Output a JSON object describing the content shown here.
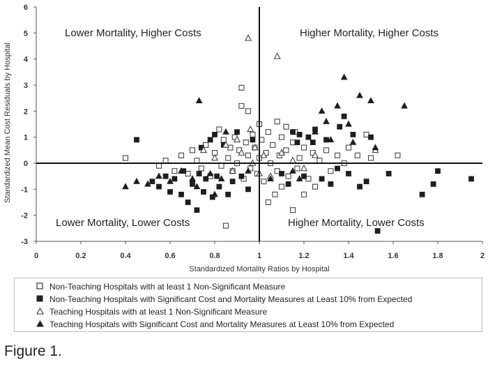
{
  "chart_data": {
    "type": "scatter",
    "title": "",
    "xlabel": "Standardized Mortality Ratios by Hospital",
    "ylabel": "Standardized Mean Cost Residuals by Hospital",
    "xlim": [
      0,
      2
    ],
    "ylim": [
      -3,
      6
    ],
    "x_ticks": [
      "0",
      "0.2",
      "0.4",
      "0.6",
      "0.8",
      "1",
      "1.2",
      "1.4",
      "1.6",
      "1.8",
      "2"
    ],
    "y_ticks": [
      "6",
      "5",
      "4",
      "3",
      "2",
      "1",
      "0",
      "-1",
      "-2",
      "-3"
    ],
    "reference_lines": {
      "x": 1,
      "y": 0
    },
    "quadrant_labels": {
      "top_left": "Lower Mortality, Higher Costs",
      "top_right": "Higher Mortality, Higher Costs",
      "bottom_left": "Lower Mortality, Lower Costs",
      "bottom_right": "Higher Mortality, Lower Costs"
    },
    "legend_placement": "bottom",
    "series": [
      {
        "name": "Non-Teaching Hospitals with at least 1 Non-Significant Measure",
        "marker": "open-square",
        "points": [
          [
            0.4,
            0.2
          ],
          [
            0.55,
            -0.1
          ],
          [
            0.58,
            0.1
          ],
          [
            0.62,
            -0.3
          ],
          [
            0.65,
            0.3
          ],
          [
            0.68,
            -0.4
          ],
          [
            0.7,
            0.5
          ],
          [
            0.72,
            0.1
          ],
          [
            0.74,
            -0.2
          ],
          [
            0.76,
            0.7
          ],
          [
            0.78,
            -0.5
          ],
          [
            0.8,
            0.4
          ],
          [
            0.82,
            1.3
          ],
          [
            0.83,
            -0.1
          ],
          [
            0.84,
            0.9
          ],
          [
            0.85,
            -2.4
          ],
          [
            0.86,
            0.2
          ],
          [
            0.87,
            0.6
          ],
          [
            0.88,
            -0.3
          ],
          [
            0.89,
            1.0
          ],
          [
            0.9,
            0.0
          ],
          [
            0.91,
            0.5
          ],
          [
            0.92,
            2.9
          ],
          [
            0.92,
            2.2
          ],
          [
            0.93,
            -0.6
          ],
          [
            0.94,
            0.8
          ],
          [
            0.95,
            2.0
          ],
          [
            0.95,
            0.3
          ],
          [
            0.96,
            -0.2
          ],
          [
            0.97,
            1.1
          ],
          [
            0.98,
            0.6
          ],
          [
            0.99,
            -0.4
          ],
          [
            1.0,
            1.5
          ],
          [
            1.0,
            0.2
          ],
          [
            1.01,
            0.9
          ],
          [
            1.02,
            -0.7
          ],
          [
            1.03,
            0.4
          ],
          [
            1.04,
            1.2
          ],
          [
            1.04,
            -1.5
          ],
          [
            1.05,
            0.0
          ],
          [
            1.06,
            0.7
          ],
          [
            1.07,
            -1.2
          ],
          [
            1.08,
            1.6
          ],
          [
            1.08,
            -0.3
          ],
          [
            1.09,
            0.3
          ],
          [
            1.1,
            1.0
          ],
          [
            1.1,
            -0.9
          ],
          [
            1.12,
            1.4
          ],
          [
            1.12,
            0.5
          ],
          [
            1.13,
            -0.5
          ],
          [
            1.15,
            0.8
          ],
          [
            1.15,
            -1.8
          ],
          [
            1.16,
            1.2
          ],
          [
            1.17,
            -0.2
          ],
          [
            1.18,
            0.2
          ],
          [
            1.2,
            -1.2
          ],
          [
            1.2,
            0.6
          ],
          [
            1.22,
            -0.6
          ],
          [
            1.24,
            0.4
          ],
          [
            1.25,
            -0.9
          ],
          [
            1.27,
            0.1
          ],
          [
            1.3,
            0.5
          ],
          [
            1.32,
            -0.3
          ],
          [
            1.35,
            0.3
          ],
          [
            1.38,
            0.0
          ],
          [
            1.4,
            0.6
          ],
          [
            1.44,
            0.3
          ],
          [
            1.48,
            1.1
          ],
          [
            1.5,
            0.2
          ],
          [
            1.62,
            0.3
          ]
        ]
      },
      {
        "name": "Non-Teaching Hospitals with Significant Cost and Mortality Measures at Least 10% from Expected",
        "marker": "filled-square",
        "points": [
          [
            0.45,
            0.9
          ],
          [
            0.52,
            -0.7
          ],
          [
            0.55,
            -0.9
          ],
          [
            0.58,
            -0.5
          ],
          [
            0.6,
            -1.1
          ],
          [
            0.62,
            -0.6
          ],
          [
            0.65,
            -1.2
          ],
          [
            0.66,
            -0.3
          ],
          [
            0.68,
            -1.5
          ],
          [
            0.7,
            -0.8
          ],
          [
            0.72,
            -1.8
          ],
          [
            0.73,
            -0.4
          ],
          [
            0.74,
            0.6
          ],
          [
            0.75,
            -1.1
          ],
          [
            0.76,
            -0.6
          ],
          [
            0.78,
            0.9
          ],
          [
            0.79,
            -1.3
          ],
          [
            0.8,
            1.1
          ],
          [
            0.81,
            -0.5
          ],
          [
            0.82,
            -0.9
          ],
          [
            0.84,
            0.7
          ],
          [
            0.86,
            -1.2
          ],
          [
            0.88,
            -0.7
          ],
          [
            0.9,
            1.2
          ],
          [
            0.92,
            -0.5
          ],
          [
            0.95,
            -1.0
          ],
          [
            0.97,
            0.9
          ],
          [
            1.1,
            -0.4
          ],
          [
            1.13,
            -0.8
          ],
          [
            1.15,
            1.2
          ],
          [
            1.17,
            0.8
          ],
          [
            1.18,
            1.1
          ],
          [
            1.2,
            -0.5
          ],
          [
            1.22,
            1.0
          ],
          [
            1.24,
            0.8
          ],
          [
            1.25,
            1.3
          ],
          [
            1.28,
            -0.6
          ],
          [
            1.3,
            0.9
          ],
          [
            1.32,
            -0.8
          ],
          [
            1.35,
            -0.2
          ],
          [
            1.36,
            1.4
          ],
          [
            1.38,
            1.8
          ],
          [
            1.4,
            -0.4
          ],
          [
            1.42,
            1.1
          ],
          [
            1.45,
            -0.9
          ],
          [
            1.48,
            -0.7
          ],
          [
            1.5,
            1.0
          ],
          [
            1.53,
            -2.6
          ],
          [
            1.58,
            -0.4
          ],
          [
            1.73,
            -1.2
          ],
          [
            1.78,
            -0.8
          ],
          [
            1.8,
            -0.3
          ],
          [
            1.95,
            -0.6
          ]
        ]
      },
      {
        "name": "Teaching Hospitals with at least 1 Non-Significant Measure",
        "marker": "open-triangle",
        "points": [
          [
            0.75,
            0.5
          ],
          [
            0.8,
            0.2
          ],
          [
            0.85,
            0.7
          ],
          [
            0.88,
            -0.3
          ],
          [
            0.9,
            0.9
          ],
          [
            0.92,
            0.4
          ],
          [
            0.95,
            4.8
          ],
          [
            0.96,
            1.3
          ],
          [
            0.97,
            0.0
          ],
          [
            0.98,
            0.6
          ],
          [
            1.0,
            -0.4
          ],
          [
            1.02,
            0.3
          ],
          [
            1.05,
            -0.5
          ],
          [
            1.08,
            4.1
          ],
          [
            1.1,
            0.4
          ],
          [
            1.15,
            0.1
          ],
          [
            1.2,
            -0.2
          ],
          [
            1.25,
            0.3
          ],
          [
            1.52,
            0.5
          ]
        ]
      },
      {
        "name": "Teaching Hospitals with Significant Cost and Mortality Measures at Least 10% from Expected",
        "marker": "filled-triangle",
        "points": [
          [
            0.4,
            -0.9
          ],
          [
            0.45,
            -0.7
          ],
          [
            0.5,
            -0.8
          ],
          [
            0.55,
            -0.5
          ],
          [
            0.6,
            -0.7
          ],
          [
            0.65,
            -0.3
          ],
          [
            0.7,
            -0.6
          ],
          [
            0.72,
            -0.9
          ],
          [
            0.73,
            2.4
          ],
          [
            0.78,
            -0.4
          ],
          [
            0.8,
            -1.2
          ],
          [
            0.83,
            -0.6
          ],
          [
            0.85,
            1.2
          ],
          [
            0.95,
            -0.3
          ],
          [
            1.05,
            -0.6
          ],
          [
            1.15,
            -0.3
          ],
          [
            1.18,
            -0.6
          ],
          [
            1.25,
            1.2
          ],
          [
            1.28,
            2.0
          ],
          [
            1.3,
            1.6
          ],
          [
            1.32,
            0.9
          ],
          [
            1.35,
            2.2
          ],
          [
            1.38,
            3.3
          ],
          [
            1.4,
            1.5
          ],
          [
            1.42,
            0.8
          ],
          [
            1.45,
            2.6
          ],
          [
            1.5,
            2.4
          ],
          [
            1.52,
            0.6
          ],
          [
            1.65,
            2.2
          ]
        ]
      }
    ]
  },
  "caption": "Figure 1."
}
